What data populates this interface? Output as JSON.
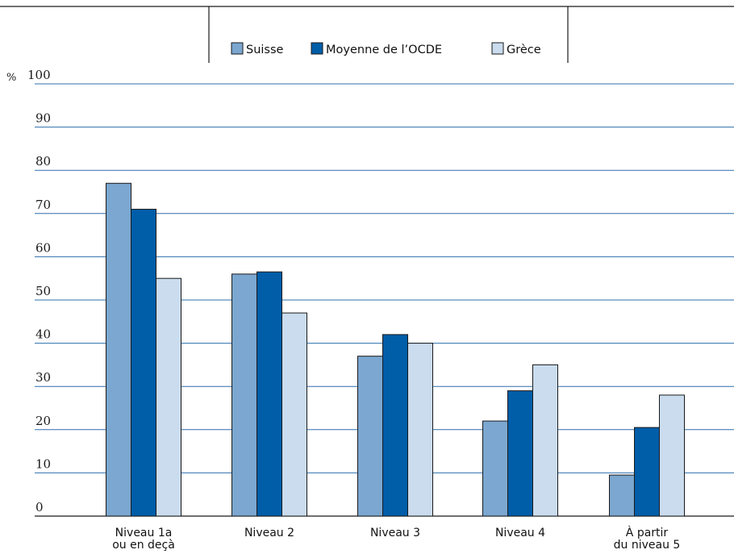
{
  "chart_data": {
    "type": "bar",
    "title": "",
    "xlabel": "",
    "ylabel": "%",
    "ylim": [
      0,
      100
    ],
    "yticks": [
      0,
      10,
      20,
      30,
      40,
      50,
      60,
      70,
      80,
      90,
      100
    ],
    "grid": true,
    "legend_position": "top",
    "categories": [
      [
        "Niveau 1a",
        "ou en deçà"
      ],
      [
        "Niveau 2"
      ],
      [
        "Niveau 3"
      ],
      [
        "Niveau 4"
      ],
      [
        "À partir",
        "du niveau 5"
      ]
    ],
    "series": [
      {
        "name": "Suisse",
        "color": "#7ba7d0",
        "values": [
          77,
          56,
          37,
          22,
          9.5
        ]
      },
      {
        "name": "Moyenne de l’OCDE",
        "color": "#005da8",
        "values": [
          71,
          56.5,
          42,
          29,
          20.5
        ]
      },
      {
        "name": "Grèce",
        "color": "#cadcee",
        "values": [
          55,
          47,
          40,
          35,
          28
        ]
      }
    ],
    "colors": {
      "grid": "#2e6fae",
      "axis": "#1a1a1a",
      "bar_stroke": "#1a1a1a"
    }
  }
}
